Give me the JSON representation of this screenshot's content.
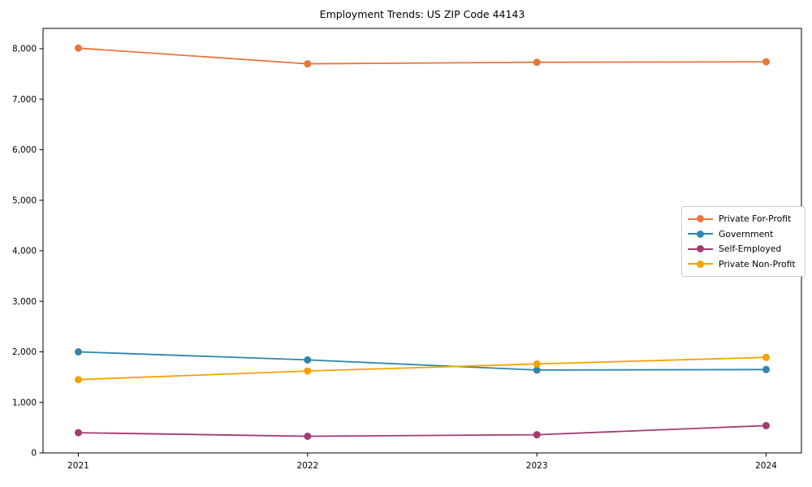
{
  "chart_data": {
    "type": "line",
    "title": "Employment Trends: US ZIP Code 44143",
    "x": [
      "2021",
      "2022",
      "2023",
      "2024"
    ],
    "series": [
      {
        "name": "Private For-Profit",
        "color": "#E8763B",
        "values": [
          8010,
          7700,
          7730,
          7740
        ]
      },
      {
        "name": "Government",
        "color": "#2E86AB",
        "values": [
          2000,
          1840,
          1640,
          1650
        ]
      },
      {
        "name": "Self-Employed",
        "color": "#A23B72",
        "values": [
          400,
          330,
          360,
          540
        ]
      },
      {
        "name": "Private Non-Profit",
        "color": "#F5A201",
        "values": [
          1450,
          1620,
          1760,
          1890
        ]
      }
    ],
    "xlabel": "",
    "ylabel": "",
    "ylim": [
      0,
      8400
    ],
    "yticks": [
      0,
      1000,
      2000,
      3000,
      4000,
      5000,
      6000,
      7000,
      8000
    ],
    "ytick_labels": [
      "0",
      "1,000",
      "2,000",
      "3,000",
      "4,000",
      "5,000",
      "6,000",
      "7,000",
      "8,000"
    ],
    "grid": false,
    "legend_position": "right-middle",
    "axis_color": "#000000",
    "text_color": "#000000",
    "background_color": "#ffffff",
    "marker": "circle",
    "line_width": 1.8,
    "marker_radius": 4.5
  }
}
